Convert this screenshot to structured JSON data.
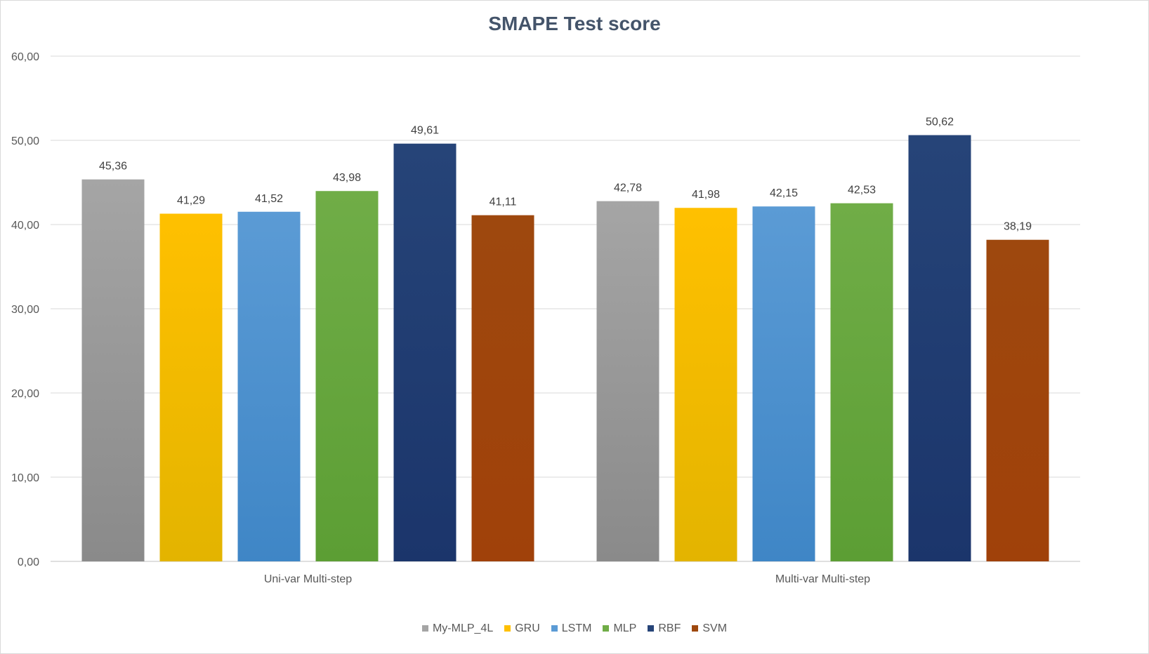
{
  "chart_data": {
    "type": "bar",
    "title": "SMAPE Test score",
    "xlabel": "",
    "ylabel": "",
    "ylim": [
      0,
      60
    ],
    "yticks": [
      "0,00",
      "10,00",
      "20,00",
      "30,00",
      "40,00",
      "50,00",
      "60,00"
    ],
    "grid": true,
    "legend_position": "bottom",
    "categories": [
      "Uni-var Multi-step",
      "Multi-var Multi-step"
    ],
    "series": [
      {
        "name": "My-MLP_4L",
        "values": [
          45.36,
          42.78
        ],
        "labels": [
          "45,36",
          "42,78"
        ],
        "color": "#a5a5a5",
        "color_dark": "#8a8a8a"
      },
      {
        "name": "GRU",
        "values": [
          41.29,
          41.98
        ],
        "labels": [
          "41,29",
          "41,98"
        ],
        "color": "#ffc000",
        "color_dark": "#e3b400"
      },
      {
        "name": "LSTM",
        "values": [
          41.52,
          42.15
        ],
        "labels": [
          "41,52",
          "42,15"
        ],
        "color": "#5b9bd5",
        "color_dark": "#3f86c6"
      },
      {
        "name": "MLP",
        "values": [
          43.98,
          42.53
        ],
        "labels": [
          "43,98",
          "42,53"
        ],
        "color": "#70ad47",
        "color_dark": "#5c9e34"
      },
      {
        "name": "RBF",
        "values": [
          49.61,
          50.62
        ],
        "labels": [
          "49,61",
          "50,62"
        ],
        "color": "#264478",
        "color_dark": "#1b356b"
      },
      {
        "name": "SVM",
        "values": [
          41.11,
          38.19
        ],
        "labels": [
          "41,11",
          "38,19"
        ],
        "color": "#9e480e",
        "color_dark": "#a0410a"
      }
    ]
  }
}
